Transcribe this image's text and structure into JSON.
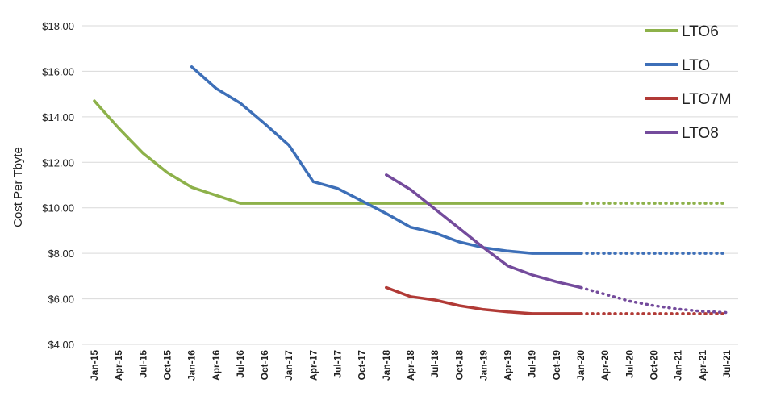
{
  "chart_data": {
    "type": "line",
    "title": "",
    "xlabel": "",
    "ylabel": "Cost Per Tbyte",
    "categories": [
      "Jan-15",
      "Apr-15",
      "Jul-15",
      "Oct-15",
      "Jan-16",
      "Apr-16",
      "Jul-16",
      "Oct-16",
      "Jan-17",
      "Apr-17",
      "Jul-17",
      "Oct-17",
      "Jan-18",
      "Apr-18",
      "Jul-18",
      "Oct-18",
      "Jan-19",
      "Apr-19",
      "Jul-19",
      "Oct-19",
      "Jan-20",
      "Apr-20",
      "Jul-20",
      "Oct-20",
      "Jan-21",
      "Apr-21",
      "Jul-21"
    ],
    "ylim": [
      4,
      18
    ],
    "yticks": [
      4,
      6,
      8,
      10,
      12,
      14,
      16,
      18
    ],
    "ytick_labels": [
      "$4.00",
      "$6.00",
      "$8.00",
      "$10.00",
      "$12.00",
      "$14.00",
      "$16.00",
      "$18.00"
    ],
    "grid": "horizontal",
    "legend_position": "top-right",
    "projection_start": "Jan-20",
    "series": [
      {
        "name": "LTO6",
        "color": "#8db14a",
        "values": [
          14.7,
          13.5,
          12.4,
          11.55,
          10.9,
          10.55,
          10.2,
          10.2,
          10.2,
          10.2,
          10.2,
          10.2,
          10.2,
          10.2,
          10.2,
          10.2,
          10.2,
          10.2,
          10.2,
          10.2,
          10.2,
          10.2,
          10.2,
          10.2,
          10.2,
          10.2,
          10.2
        ]
      },
      {
        "name": "LTO",
        "color": "#3d6fb8",
        "values": [
          null,
          null,
          null,
          null,
          16.2,
          15.25,
          14.6,
          13.7,
          12.75,
          11.15,
          10.85,
          10.3,
          9.75,
          9.15,
          8.9,
          8.5,
          8.25,
          8.1,
          8.0,
          8.0,
          8.0,
          8.0,
          8.0,
          8.0,
          8.0,
          8.0,
          8.0
        ]
      },
      {
        "name": "LTO7M",
        "color": "#b13a36",
        "values": [
          null,
          null,
          null,
          null,
          null,
          null,
          null,
          null,
          null,
          null,
          null,
          null,
          6.5,
          6.1,
          5.95,
          5.7,
          5.53,
          5.43,
          5.35,
          5.35,
          5.35,
          5.35,
          5.35,
          5.35,
          5.35,
          5.35,
          5.35
        ]
      },
      {
        "name": "LTO8",
        "color": "#744b9c",
        "values": [
          null,
          null,
          null,
          null,
          null,
          null,
          null,
          null,
          null,
          null,
          null,
          null,
          11.45,
          10.8,
          9.95,
          9.1,
          8.25,
          7.45,
          7.05,
          6.75,
          6.5,
          6.2,
          5.9,
          5.7,
          5.55,
          5.45,
          5.4
        ]
      }
    ]
  }
}
